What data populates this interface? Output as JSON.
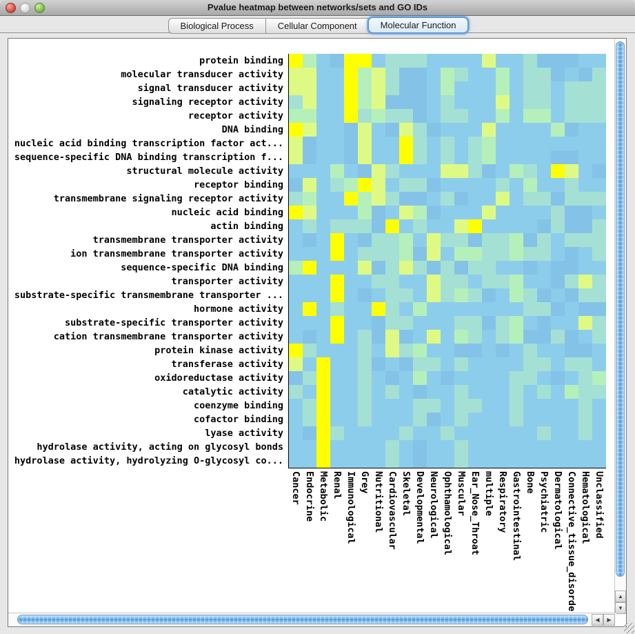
{
  "window": {
    "title": "Pvalue heatmap between networks/sets and GO IDs",
    "traffic_lights": [
      {
        "name": "close",
        "color": "#DD4F44"
      },
      {
        "name": "minimize",
        "color": "#DCDCDC"
      },
      {
        "name": "zoom",
        "color": "#7CBE48"
      }
    ]
  },
  "tabs": [
    {
      "label": "Biological Process",
      "selected": false
    },
    {
      "label": "Cellular Component",
      "selected": false
    },
    {
      "label": "Molecular Function",
      "selected": true
    }
  ],
  "scrollbars": {
    "vertical": {
      "up_arrow": "▲",
      "down_arrow": "▼"
    },
    "horizontal": {
      "left_arrow": "◀",
      "right_arrow": "▶"
    }
  },
  "chart_data": {
    "type": "heatmap",
    "title": "Pvalue heatmap between networks/sets and GO IDs",
    "value_encoding": "color level 0 (light blue, low significance) to 5 (yellow, high significance)",
    "color_levels": {
      "0": "#8DCDEC",
      "1": "#84C3E7",
      "2": "#A5E0D5",
      "3": "#B5F0BB",
      "4": "#DEFA85",
      "5": "#FFFF00"
    },
    "rows": [
      "protein binding",
      "molecular transducer activity",
      "signal transducer activity",
      "signaling receptor activity",
      "receptor activity",
      "DNA binding",
      "nucleic acid binding transcription factor act...",
      "sequence-specific DNA binding transcription f...",
      "structural molecule activity",
      "receptor binding",
      "transmembrane signaling receptor activity",
      "nucleic acid binding",
      "actin binding",
      "transmembrane transporter activity",
      "ion transmembrane transporter activity",
      "sequence-specific DNA binding",
      "transporter activity",
      "substrate-specific transmembrane transporter ...",
      "hormone activity",
      "substrate-specific transporter activity",
      "cation transmembrane transporter activity",
      "protein kinase activity",
      "transferase activity",
      "oxidoreductase activity",
      "catalytic activity",
      "coenzyme binding",
      "cofactor binding",
      "lyase activity",
      "hydrolase activity, acting on glycosyl bonds",
      "hydrolase activity, hydrolyzing O-glycosyl co..."
    ],
    "columns": [
      "Cancer",
      "Endocrine",
      "Metabolic",
      "Renal",
      "Immunological",
      "Grey",
      "Nutritional",
      "Cardiovascular",
      "Skeletal",
      "Developmental",
      "Neurological",
      "Ophthamological",
      "Muscular",
      "Ear_Nose_Throat",
      "multiple",
      "Respiratory",
      "Gastrointestinal",
      "Bone",
      "Psychiatric",
      "Dermatological",
      "Connective_tissue_disorder",
      "Hematological",
      "Unclassified"
    ],
    "cells": [
      [
        5,
        3,
        0,
        1,
        5,
        5,
        0,
        2,
        2,
        2,
        0,
        0,
        0,
        0,
        4,
        0,
        0,
        2,
        1,
        1,
        1,
        0,
        0
      ],
      [
        4,
        4,
        0,
        0,
        5,
        3,
        4,
        2,
        1,
        1,
        0,
        3,
        2,
        0,
        0,
        3,
        0,
        2,
        2,
        1,
        0,
        1,
        2
      ],
      [
        4,
        4,
        0,
        0,
        5,
        3,
        4,
        2,
        1,
        1,
        0,
        3,
        0,
        0,
        0,
        3,
        0,
        2,
        2,
        0,
        2,
        2,
        2
      ],
      [
        2,
        4,
        0,
        0,
        5,
        3,
        4,
        1,
        1,
        1,
        0,
        2,
        0,
        0,
        0,
        4,
        0,
        2,
        2,
        0,
        2,
        2,
        2
      ],
      [
        3,
        3,
        0,
        0,
        5,
        2,
        3,
        2,
        2,
        1,
        0,
        2,
        2,
        0,
        0,
        3,
        0,
        3,
        3,
        0,
        2,
        2,
        2
      ],
      [
        5,
        4,
        0,
        0,
        1,
        4,
        0,
        1,
        4,
        2,
        1,
        0,
        0,
        0,
        4,
        0,
        0,
        0,
        0,
        3,
        1,
        0,
        0
      ],
      [
        4,
        1,
        0,
        0,
        1,
        4,
        0,
        0,
        5,
        2,
        0,
        2,
        0,
        2,
        3,
        0,
        0,
        0,
        0,
        0,
        0,
        0,
        0
      ],
      [
        4,
        1,
        0,
        0,
        1,
        4,
        0,
        0,
        5,
        2,
        0,
        2,
        0,
        2,
        3,
        0,
        0,
        0,
        0,
        1,
        1,
        0,
        0
      ],
      [
        0,
        0,
        0,
        3,
        0,
        1,
        4,
        2,
        0,
        0,
        0,
        4,
        4,
        2,
        1,
        0,
        3,
        2,
        0,
        5,
        4,
        0,
        1
      ],
      [
        1,
        4,
        0,
        2,
        3,
        5,
        4,
        0,
        2,
        2,
        1,
        0,
        0,
        0,
        0,
        2,
        0,
        3,
        0,
        0,
        2,
        0,
        0
      ],
      [
        2,
        3,
        0,
        0,
        5,
        3,
        4,
        2,
        1,
        1,
        0,
        2,
        1,
        0,
        0,
        4,
        0,
        2,
        2,
        1,
        2,
        2,
        2
      ],
      [
        5,
        4,
        0,
        0,
        0,
        3,
        1,
        0,
        4,
        3,
        1,
        0,
        0,
        0,
        4,
        0,
        0,
        0,
        0,
        2,
        1,
        1,
        0
      ],
      [
        0,
        2,
        0,
        2,
        2,
        2,
        1,
        5,
        0,
        2,
        0,
        0,
        4,
        5,
        0,
        0,
        0,
        0,
        1,
        2,
        1,
        1,
        2
      ],
      [
        0,
        1,
        0,
        5,
        0,
        1,
        2,
        2,
        3,
        0,
        4,
        2,
        2,
        1,
        2,
        2,
        3,
        1,
        2,
        0,
        2,
        2,
        2
      ],
      [
        0,
        0,
        0,
        5,
        0,
        2,
        2,
        2,
        3,
        1,
        4,
        0,
        3,
        3,
        2,
        2,
        3,
        2,
        2,
        0,
        1,
        0,
        2
      ],
      [
        3,
        5,
        0,
        0,
        0,
        4,
        1,
        2,
        4,
        2,
        1,
        2,
        1,
        2,
        2,
        0,
        0,
        1,
        0,
        1,
        1,
        0,
        0
      ],
      [
        0,
        0,
        0,
        5,
        0,
        0,
        2,
        2,
        0,
        0,
        4,
        2,
        2,
        0,
        2,
        2,
        3,
        0,
        0,
        1,
        2,
        4,
        2
      ],
      [
        0,
        0,
        0,
        5,
        0,
        1,
        0,
        2,
        2,
        0,
        4,
        2,
        3,
        2,
        1,
        0,
        3,
        2,
        1,
        0,
        1,
        2,
        2
      ],
      [
        0,
        5,
        0,
        2,
        0,
        0,
        5,
        2,
        0,
        3,
        0,
        0,
        0,
        0,
        0,
        0,
        0,
        2,
        2,
        1,
        0,
        1,
        1
      ],
      [
        0,
        0,
        0,
        5,
        0,
        0,
        1,
        2,
        2,
        0,
        0,
        0,
        2,
        2,
        1,
        2,
        3,
        0,
        1,
        0,
        0,
        4,
        2
      ],
      [
        0,
        1,
        0,
        5,
        0,
        2,
        1,
        4,
        1,
        0,
        4,
        0,
        3,
        2,
        0,
        2,
        3,
        1,
        1,
        2,
        1,
        0,
        2
      ],
      [
        5,
        2,
        0,
        0,
        0,
        2,
        0,
        4,
        2,
        3,
        0,
        0,
        1,
        1,
        0,
        1,
        0,
        2,
        0,
        0,
        1,
        1,
        0
      ],
      [
        4,
        0,
        5,
        0,
        0,
        2,
        1,
        0,
        1,
        2,
        2,
        0,
        2,
        0,
        0,
        0,
        0,
        2,
        2,
        0,
        2,
        2,
        0
      ],
      [
        1,
        2,
        5,
        0,
        0,
        2,
        0,
        1,
        0,
        3,
        0,
        1,
        0,
        0,
        0,
        0,
        2,
        2,
        0,
        1,
        0,
        2,
        3
      ],
      [
        2,
        0,
        5,
        0,
        0,
        2,
        0,
        2,
        0,
        1,
        0,
        0,
        2,
        0,
        0,
        0,
        2,
        0,
        2,
        0,
        3,
        2,
        2
      ],
      [
        0,
        2,
        5,
        0,
        0,
        2,
        0,
        0,
        0,
        2,
        2,
        0,
        2,
        2,
        0,
        0,
        2,
        0,
        0,
        0,
        0,
        2,
        0
      ],
      [
        0,
        2,
        5,
        0,
        0,
        2,
        0,
        0,
        0,
        2,
        1,
        0,
        2,
        0,
        0,
        0,
        2,
        0,
        0,
        0,
        0,
        2,
        0
      ],
      [
        0,
        1,
        5,
        2,
        0,
        0,
        0,
        0,
        2,
        0,
        0,
        2,
        0,
        0,
        0,
        0,
        0,
        0,
        2,
        0,
        0,
        2,
        0
      ],
      [
        0,
        0,
        5,
        0,
        0,
        0,
        0,
        2,
        0,
        1,
        0,
        0,
        2,
        0,
        0,
        0,
        0,
        0,
        0,
        0,
        0,
        0,
        0
      ],
      [
        0,
        0,
        5,
        0,
        0,
        0,
        0,
        2,
        0,
        1,
        0,
        0,
        2,
        0,
        0,
        0,
        0,
        0,
        0,
        0,
        0,
        0,
        0
      ]
    ]
  }
}
